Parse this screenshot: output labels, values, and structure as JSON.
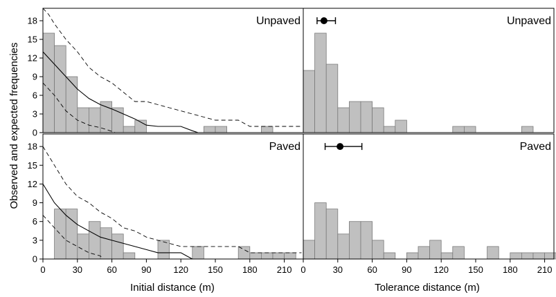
{
  "figure": {
    "ylabel": "Observed and expected frequencies",
    "left_xlabel": "Initial distance (m)",
    "right_xlabel": "Tolerance distance (m)"
  },
  "chart_data": [
    {
      "type": "bar",
      "title": "Unpaved",
      "xlabel": "Initial distance (m)",
      "ylabel": "Observed and expected frequencies",
      "bin_width": 10,
      "xlim": [
        0,
        225
      ],
      "ylim": [
        0,
        20
      ],
      "xticks": [
        0,
        30,
        60,
        90,
        120,
        150,
        180,
        210
      ],
      "yticks": [
        0,
        3,
        6,
        9,
        12,
        15,
        18
      ],
      "grid": false,
      "bins": [
        0,
        10,
        20,
        30,
        40,
        50,
        60,
        70,
        80,
        140,
        150,
        190
      ],
      "values": [
        16,
        14,
        9,
        4,
        4,
        5,
        4,
        1,
        2,
        1,
        1,
        1
      ],
      "lines": [
        {
          "style": "solid",
          "x": [
            0,
            10,
            20,
            30,
            40,
            50,
            60,
            70,
            80,
            90,
            100,
            110,
            120,
            130,
            135
          ],
          "y": [
            13,
            11,
            9,
            7,
            5.5,
            4.5,
            3.8,
            3,
            2.2,
            1.2,
            1,
            1,
            1,
            0.3,
            0
          ]
        },
        {
          "style": "dashed",
          "x": [
            0,
            5,
            10,
            20,
            30,
            40,
            50,
            60,
            70,
            80,
            90,
            100,
            110,
            120,
            130,
            140,
            150,
            160,
            170,
            180,
            190,
            200,
            225
          ],
          "y": [
            20,
            19,
            17.5,
            15,
            13,
            10.5,
            9,
            8,
            6.5,
            5,
            5,
            4.5,
            4,
            3.5,
            3,
            2.5,
            2,
            2,
            2,
            1,
            1,
            1,
            1
          ]
        },
        {
          "style": "dashed",
          "x": [
            0,
            10,
            20,
            30,
            40,
            50,
            60,
            63
          ],
          "y": [
            8,
            6,
            3.5,
            2,
            1.2,
            0.8,
            0.2,
            0
          ]
        }
      ]
    },
    {
      "type": "bar",
      "title": "Unpaved",
      "xlabel": "Tolerance distance (m)",
      "bin_width": 10,
      "xlim": [
        0,
        225
      ],
      "ylim": [
        0,
        20
      ],
      "xticks": [
        0,
        30,
        60,
        90,
        120,
        150,
        180,
        210
      ],
      "yticks": [
        0,
        3,
        6,
        9,
        12,
        15,
        18
      ],
      "grid": false,
      "bins": [
        0,
        10,
        20,
        30,
        40,
        50,
        60,
        70,
        80,
        130,
        140,
        190
      ],
      "values": [
        10,
        16,
        11,
        4,
        5,
        5,
        4,
        1,
        2,
        1,
        1,
        1
      ],
      "point": {
        "x": 18,
        "xerr": [
          12,
          28
        ],
        "y": 18
      }
    },
    {
      "type": "bar",
      "title": "Paved",
      "xlabel": "Initial distance (m)",
      "ylabel": "Observed and expected frequencies",
      "bin_width": 10,
      "xlim": [
        0,
        225
      ],
      "ylim": [
        0,
        20
      ],
      "xticks": [
        0,
        30,
        60,
        90,
        120,
        150,
        180,
        210
      ],
      "yticks": [
        0,
        3,
        6,
        9,
        12,
        15,
        18
      ],
      "grid": false,
      "bins": [
        10,
        20,
        30,
        40,
        50,
        60,
        70,
        100,
        130,
        170,
        180,
        190,
        200,
        210
      ],
      "values": [
        8,
        8,
        4,
        6,
        5,
        4,
        1,
        3,
        2,
        2,
        1,
        1,
        1,
        1
      ],
      "lines": [
        {
          "style": "solid",
          "x": [
            0,
            10,
            20,
            30,
            40,
            50,
            60,
            70,
            80,
            90,
            100,
            110,
            120,
            125,
            130
          ],
          "y": [
            12,
            9,
            7,
            5.5,
            4.5,
            3.5,
            3,
            2.5,
            2,
            1.5,
            1,
            1,
            1,
            0.5,
            0
          ]
        },
        {
          "style": "dashed",
          "x": [
            0,
            10,
            20,
            30,
            40,
            50,
            60,
            70,
            80,
            90,
            100,
            110,
            120,
            130,
            140,
            150,
            160,
            170,
            180,
            225
          ],
          "y": [
            18,
            15,
            12,
            10,
            9,
            7.5,
            6.5,
            5,
            4.5,
            3.5,
            3,
            2.5,
            2,
            2,
            2,
            2,
            2,
            2,
            1,
            1
          ]
        },
        {
          "style": "dashed",
          "x": [
            0,
            10,
            20,
            30,
            40,
            50,
            52
          ],
          "y": [
            7,
            5,
            3,
            2,
            1,
            0.5,
            0
          ]
        }
      ]
    },
    {
      "type": "bar",
      "title": "Paved",
      "xlabel": "Tolerance distance (m)",
      "bin_width": 10,
      "xlim": [
        0,
        225
      ],
      "ylim": [
        0,
        20
      ],
      "xticks": [
        0,
        30,
        60,
        90,
        120,
        150,
        180,
        210
      ],
      "yticks": [
        0,
        3,
        6,
        9,
        12,
        15,
        18
      ],
      "grid": false,
      "bins": [
        0,
        10,
        20,
        30,
        40,
        50,
        60,
        70,
        90,
        100,
        110,
        120,
        130,
        160,
        180,
        190,
        200,
        210
      ],
      "values": [
        3,
        9,
        8,
        4,
        6,
        6,
        3,
        1,
        1,
        2,
        3,
        1,
        2,
        2,
        1,
        1,
        1,
        1
      ],
      "point": {
        "x": 32,
        "xerr": [
          19,
          51
        ],
        "y": 18
      }
    }
  ]
}
